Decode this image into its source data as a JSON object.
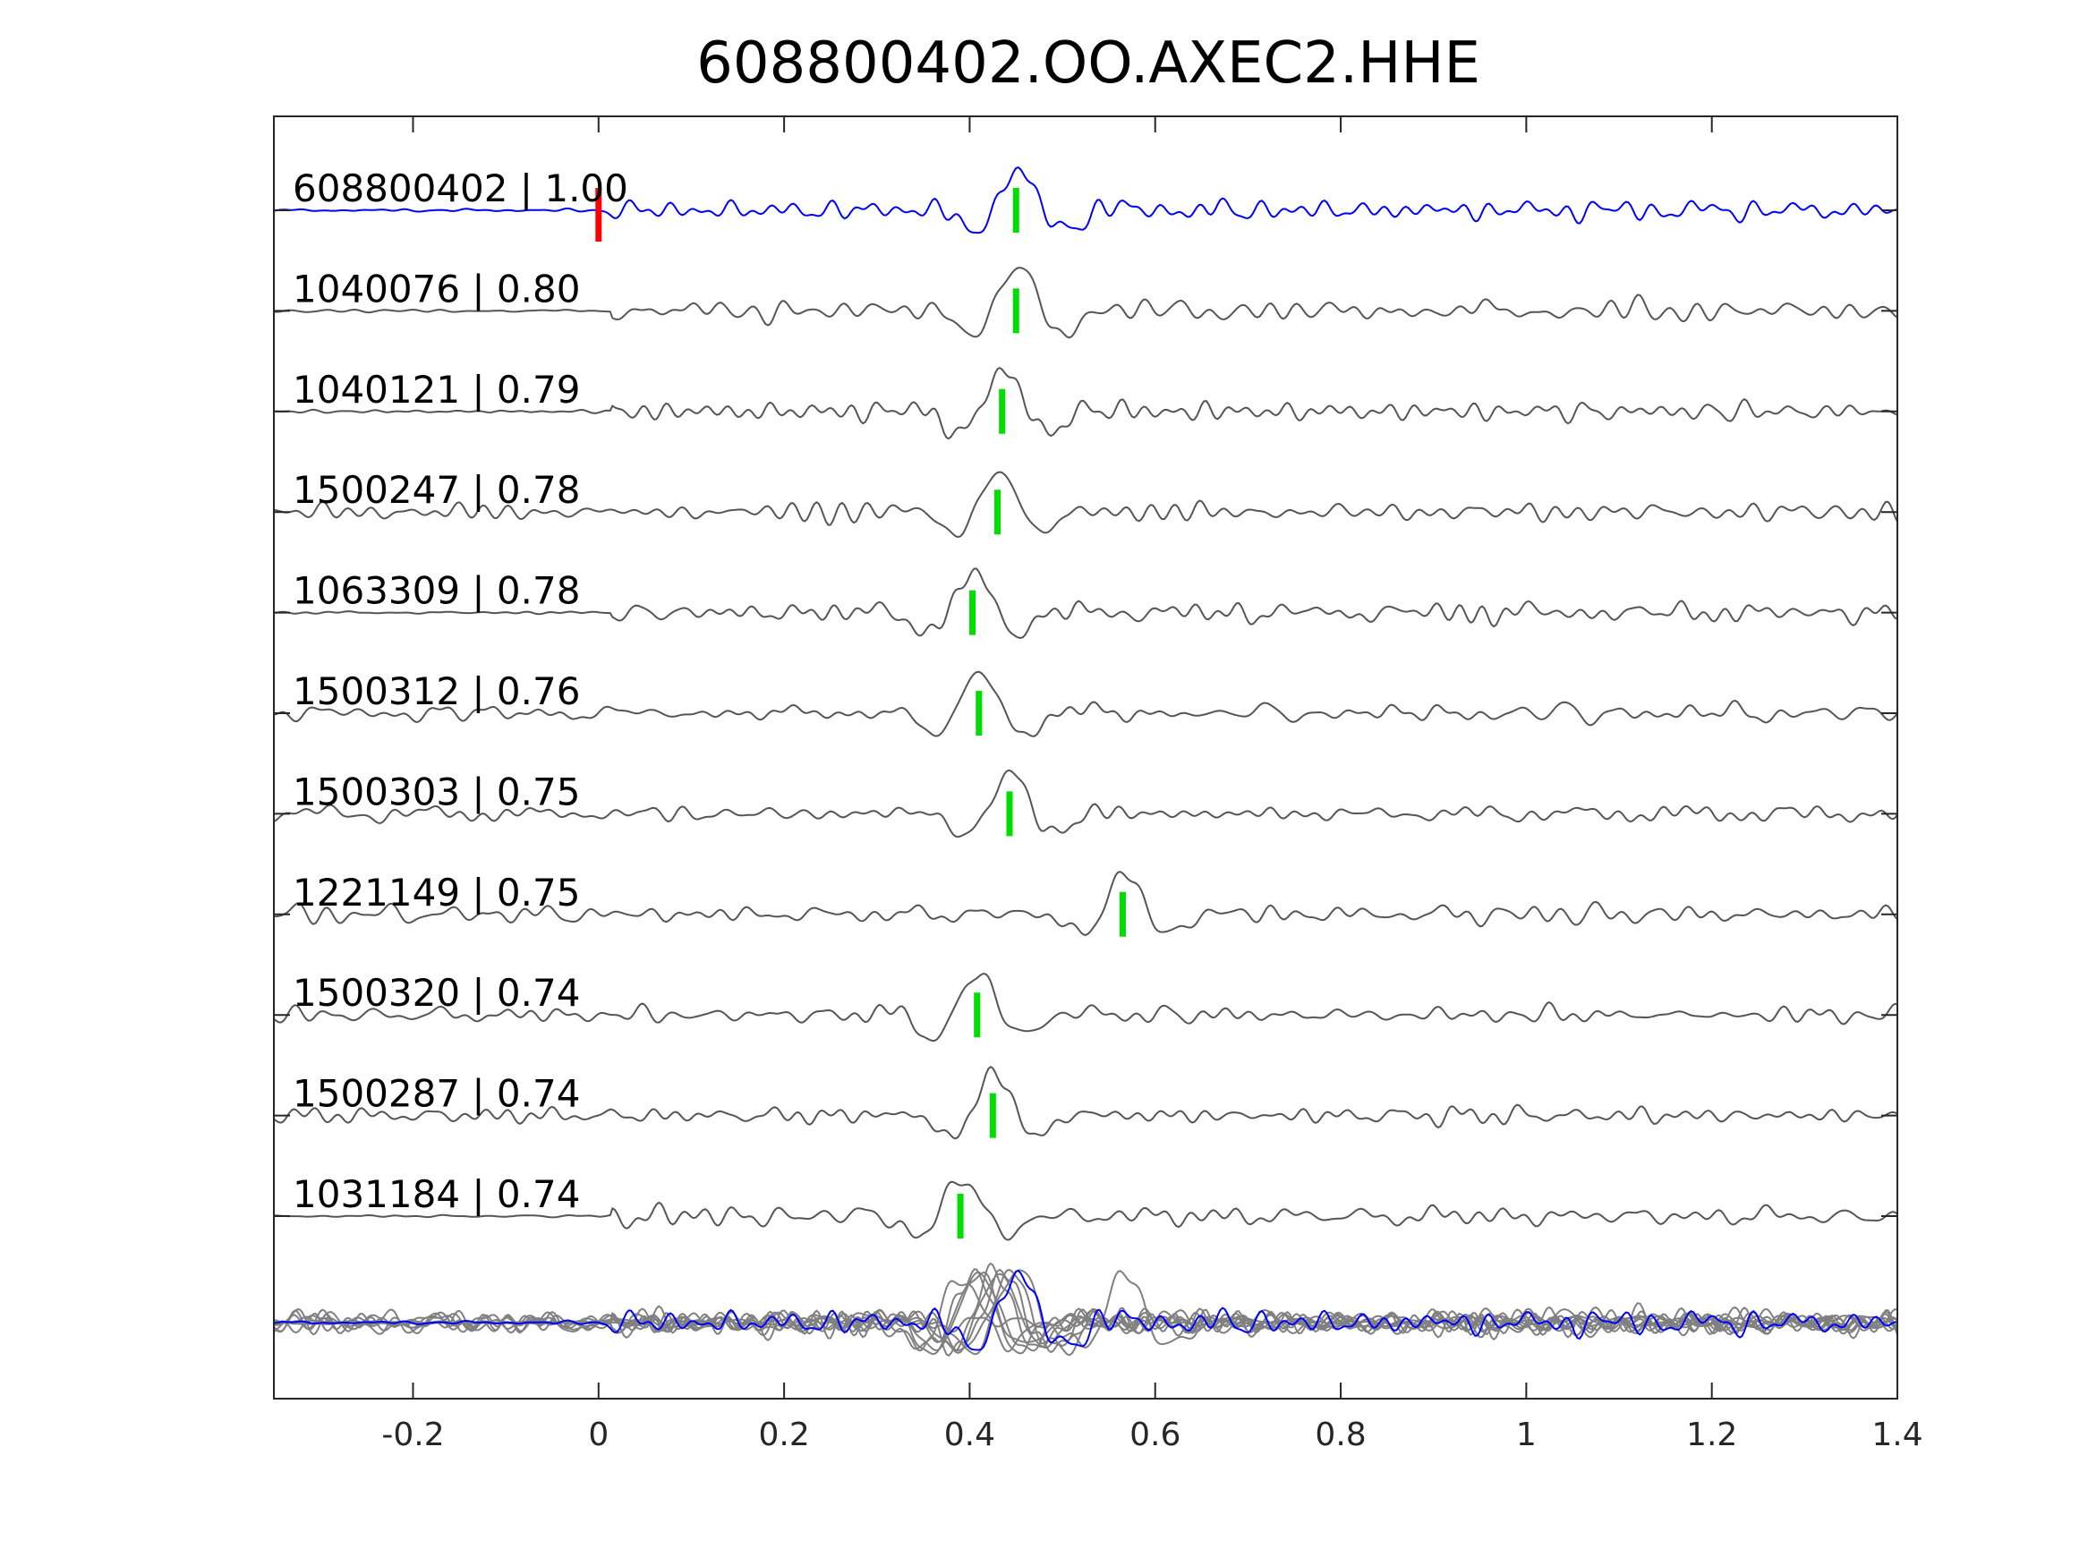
{
  "chart_data": {
    "type": "line",
    "title": "608800402.OO.AXEC2.HHE",
    "xlabel": "",
    "ylabel": "",
    "xlim": [
      -0.35,
      1.4
    ],
    "xticks": [
      "-0.2",
      "0",
      "0.2",
      "0.4",
      "0.6",
      "0.8",
      "1",
      "1.2",
      "1.4"
    ],
    "xtick_values": [
      -0.2,
      0,
      0.2,
      0.4,
      0.6,
      0.8,
      1.0,
      1.2,
      1.4
    ],
    "grid": false,
    "colors": {
      "template": "#0000ff",
      "match": "#555555",
      "stack": "#808080",
      "origin_marker": "#ff0000",
      "pick_marker": "#00dd00",
      "axes": "#262626"
    },
    "origin_marker_time": 0.0,
    "traces": [
      {
        "id": "608800402",
        "cc": "1.00",
        "label": "608800402 | 1.00",
        "pick": 0.45,
        "seed": 3,
        "onset": 0.0,
        "color": "template"
      },
      {
        "id": "1040076",
        "cc": "0.80",
        "label": "1040076 | 0.80",
        "pick": 0.45,
        "seed": 11,
        "onset": 0.015,
        "color": "match"
      },
      {
        "id": "1040121",
        "cc": "0.79",
        "label": "1040121 | 0.79",
        "pick": 0.435,
        "seed": 17,
        "onset": 0.015,
        "color": "match"
      },
      {
        "id": "1500247",
        "cc": "0.78",
        "label": "1500247 | 0.78",
        "pick": 0.43,
        "seed": 23,
        "onset": -0.35,
        "color": "match"
      },
      {
        "id": "1063309",
        "cc": "0.78",
        "label": "1063309 | 0.78",
        "pick": 0.403,
        "seed": 29,
        "onset": 0.015,
        "color": "match"
      },
      {
        "id": "1500312",
        "cc": "0.76",
        "label": "1500312 | 0.76",
        "pick": 0.41,
        "seed": 31,
        "onset": -0.35,
        "color": "match"
      },
      {
        "id": "1500303",
        "cc": "0.75",
        "label": "1500303 | 0.75",
        "pick": 0.443,
        "seed": 37,
        "onset": -0.35,
        "color": "match"
      },
      {
        "id": "1221149",
        "cc": "0.75",
        "label": "1221149 | 0.75",
        "pick": 0.565,
        "seed": 41,
        "onset": -0.35,
        "color": "match"
      },
      {
        "id": "1500320",
        "cc": "0.74",
        "label": "1500320 | 0.74",
        "pick": 0.408,
        "seed": 43,
        "onset": -0.35,
        "color": "match"
      },
      {
        "id": "1500287",
        "cc": "0.74",
        "label": "1500287 | 0.74",
        "pick": 0.425,
        "seed": 47,
        "onset": -0.35,
        "color": "match"
      },
      {
        "id": "1031184",
        "cc": "0.74",
        "label": "1031184 | 0.74",
        "pick": 0.39,
        "seed": 53,
        "onset": 0.015,
        "color": "match"
      }
    ],
    "overlay": {
      "description": "superposition of all traces",
      "seed": 97
    }
  }
}
